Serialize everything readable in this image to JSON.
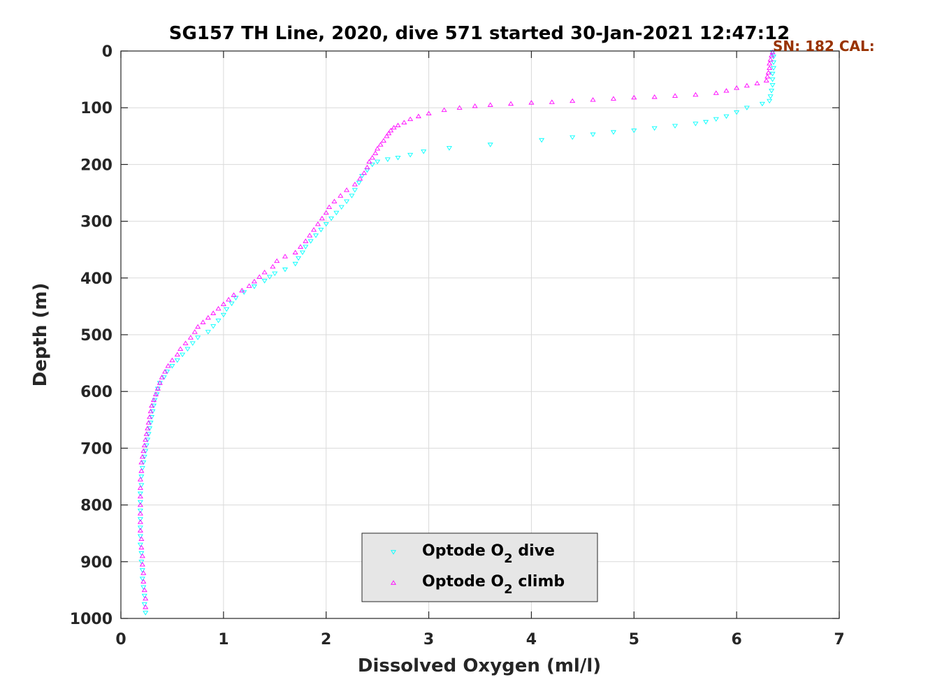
{
  "chart_data": {
    "type": "scatter",
    "title": "SG157 TH Line, 2020, dive 571 started 30-Jan-2021 12:47:12",
    "xlabel": "Dissolved Oxygen (ml/l)",
    "ylabel": "Depth (m)",
    "xlim": [
      0,
      7
    ],
    "ylim": [
      0,
      1000
    ],
    "y_reversed": true,
    "xticks": [
      0,
      1,
      2,
      3,
      4,
      5,
      6,
      7
    ],
    "yticks": [
      0,
      100,
      200,
      300,
      400,
      500,
      600,
      700,
      800,
      900,
      1000
    ],
    "grid": true,
    "legend_position": "bottom-center",
    "annotation": {
      "text": "SN: 182  CAL:",
      "color": "#993300",
      "position": "top-right"
    },
    "series": [
      {
        "name_prefix": "Optode O",
        "name_sub": "2",
        "name_suffix": " dive",
        "marker": "triangle-down",
        "color": "#00ffff",
        "points": [
          [
            6.35,
            2
          ],
          [
            6.36,
            10
          ],
          [
            6.36,
            20
          ],
          [
            6.36,
            30
          ],
          [
            6.35,
            40
          ],
          [
            6.35,
            50
          ],
          [
            6.35,
            60
          ],
          [
            6.34,
            70
          ],
          [
            6.33,
            80
          ],
          [
            6.32,
            88
          ],
          [
            6.25,
            93
          ],
          [
            6.1,
            100
          ],
          [
            6.0,
            108
          ],
          [
            5.9,
            115
          ],
          [
            5.8,
            120
          ],
          [
            5.7,
            125
          ],
          [
            5.6,
            128
          ],
          [
            5.4,
            132
          ],
          [
            5.2,
            136
          ],
          [
            5.0,
            140
          ],
          [
            4.8,
            143
          ],
          [
            4.6,
            147
          ],
          [
            4.4,
            152
          ],
          [
            4.1,
            157
          ],
          [
            3.6,
            165
          ],
          [
            3.2,
            171
          ],
          [
            2.95,
            177
          ],
          [
            2.82,
            183
          ],
          [
            2.7,
            188
          ],
          [
            2.6,
            191
          ],
          [
            2.5,
            195
          ],
          [
            2.45,
            200
          ],
          [
            2.4,
            210
          ],
          [
            2.35,
            220
          ],
          [
            2.32,
            232
          ],
          [
            2.28,
            245
          ],
          [
            2.25,
            255
          ],
          [
            2.2,
            265
          ],
          [
            2.15,
            275
          ],
          [
            2.1,
            285
          ],
          [
            2.05,
            295
          ],
          [
            2.0,
            305
          ],
          [
            1.95,
            315
          ],
          [
            1.9,
            325
          ],
          [
            1.85,
            335
          ],
          [
            1.8,
            345
          ],
          [
            1.77,
            355
          ],
          [
            1.73,
            365
          ],
          [
            1.7,
            375
          ],
          [
            1.6,
            385
          ],
          [
            1.5,
            392
          ],
          [
            1.45,
            398
          ],
          [
            1.4,
            405
          ],
          [
            1.3,
            415
          ],
          [
            1.2,
            425
          ],
          [
            1.12,
            435
          ],
          [
            1.08,
            445
          ],
          [
            1.03,
            455
          ],
          [
            1.0,
            465
          ],
          [
            0.95,
            475
          ],
          [
            0.9,
            485
          ],
          [
            0.85,
            495
          ],
          [
            0.75,
            505
          ],
          [
            0.7,
            515
          ],
          [
            0.65,
            525
          ],
          [
            0.6,
            535
          ],
          [
            0.55,
            545
          ],
          [
            0.5,
            555
          ],
          [
            0.45,
            565
          ],
          [
            0.42,
            575
          ],
          [
            0.38,
            585
          ],
          [
            0.36,
            595
          ],
          [
            0.35,
            605
          ],
          [
            0.33,
            615
          ],
          [
            0.32,
            625
          ],
          [
            0.31,
            635
          ],
          [
            0.3,
            645
          ],
          [
            0.29,
            655
          ],
          [
            0.28,
            665
          ],
          [
            0.27,
            675
          ],
          [
            0.26,
            685
          ],
          [
            0.25,
            695
          ],
          [
            0.24,
            705
          ],
          [
            0.23,
            715
          ],
          [
            0.22,
            725
          ],
          [
            0.21,
            735
          ],
          [
            0.2,
            750
          ],
          [
            0.2,
            765
          ],
          [
            0.19,
            780
          ],
          [
            0.19,
            795
          ],
          [
            0.19,
            810
          ],
          [
            0.19,
            825
          ],
          [
            0.19,
            840
          ],
          [
            0.19,
            855
          ],
          [
            0.19,
            870
          ],
          [
            0.2,
            885
          ],
          [
            0.2,
            900
          ],
          [
            0.21,
            915
          ],
          [
            0.21,
            930
          ],
          [
            0.22,
            945
          ],
          [
            0.23,
            960
          ],
          [
            0.23,
            975
          ],
          [
            0.24,
            990
          ]
        ]
      },
      {
        "name_prefix": "Optode O",
        "name_sub": "2",
        "name_suffix": " climb",
        "marker": "triangle-up",
        "color": "#ff00ff",
        "points": [
          [
            6.35,
            2
          ],
          [
            6.34,
            8
          ],
          [
            6.33,
            15
          ],
          [
            6.32,
            22
          ],
          [
            6.32,
            30
          ],
          [
            6.31,
            38
          ],
          [
            6.3,
            45
          ],
          [
            6.29,
            52
          ],
          [
            6.2,
            57
          ],
          [
            6.1,
            61
          ],
          [
            6.0,
            65
          ],
          [
            5.9,
            70
          ],
          [
            5.8,
            74
          ],
          [
            5.6,
            77
          ],
          [
            5.4,
            79
          ],
          [
            5.2,
            81
          ],
          [
            5.0,
            82
          ],
          [
            4.8,
            84
          ],
          [
            4.6,
            86
          ],
          [
            4.4,
            88
          ],
          [
            4.2,
            90
          ],
          [
            4.0,
            91
          ],
          [
            3.8,
            93
          ],
          [
            3.6,
            95
          ],
          [
            3.45,
            97
          ],
          [
            3.3,
            100
          ],
          [
            3.15,
            104
          ],
          [
            3.0,
            110
          ],
          [
            2.9,
            115
          ],
          [
            2.82,
            120
          ],
          [
            2.76,
            126
          ],
          [
            2.7,
            131
          ],
          [
            2.66,
            135
          ],
          [
            2.63,
            140
          ],
          [
            2.61,
            145
          ],
          [
            2.59,
            150
          ],
          [
            2.56,
            158
          ],
          [
            2.53,
            165
          ],
          [
            2.5,
            172
          ],
          [
            2.48,
            180
          ],
          [
            2.45,
            188
          ],
          [
            2.42,
            195
          ],
          [
            2.4,
            205
          ],
          [
            2.37,
            215
          ],
          [
            2.33,
            225
          ],
          [
            2.28,
            235
          ],
          [
            2.2,
            245
          ],
          [
            2.14,
            255
          ],
          [
            2.08,
            265
          ],
          [
            2.03,
            275
          ],
          [
            2.0,
            285
          ],
          [
            1.96,
            295
          ],
          [
            1.92,
            305
          ],
          [
            1.88,
            315
          ],
          [
            1.84,
            325
          ],
          [
            1.8,
            335
          ],
          [
            1.75,
            345
          ],
          [
            1.7,
            355
          ],
          [
            1.6,
            362
          ],
          [
            1.52,
            370
          ],
          [
            1.48,
            380
          ],
          [
            1.4,
            390
          ],
          [
            1.35,
            398
          ],
          [
            1.3,
            406
          ],
          [
            1.25,
            414
          ],
          [
            1.18,
            422
          ],
          [
            1.1,
            430
          ],
          [
            1.05,
            438
          ],
          [
            1.0,
            446
          ],
          [
            0.95,
            454
          ],
          [
            0.9,
            462
          ],
          [
            0.85,
            470
          ],
          [
            0.8,
            478
          ],
          [
            0.75,
            486
          ],
          [
            0.72,
            495
          ],
          [
            0.68,
            505
          ],
          [
            0.63,
            515
          ],
          [
            0.58,
            525
          ],
          [
            0.55,
            535
          ],
          [
            0.5,
            545
          ],
          [
            0.46,
            555
          ],
          [
            0.43,
            565
          ],
          [
            0.4,
            575
          ],
          [
            0.38,
            585
          ],
          [
            0.36,
            595
          ],
          [
            0.34,
            605
          ],
          [
            0.32,
            615
          ],
          [
            0.3,
            625
          ],
          [
            0.29,
            635
          ],
          [
            0.28,
            645
          ],
          [
            0.27,
            655
          ],
          [
            0.26,
            665
          ],
          [
            0.25,
            675
          ],
          [
            0.24,
            685
          ],
          [
            0.23,
            695
          ],
          [
            0.22,
            705
          ],
          [
            0.21,
            715
          ],
          [
            0.2,
            725
          ],
          [
            0.2,
            740
          ],
          [
            0.19,
            755
          ],
          [
            0.19,
            770
          ],
          [
            0.19,
            785
          ],
          [
            0.19,
            800
          ],
          [
            0.19,
            815
          ],
          [
            0.19,
            830
          ],
          [
            0.19,
            845
          ],
          [
            0.2,
            860
          ],
          [
            0.2,
            875
          ],
          [
            0.21,
            890
          ],
          [
            0.21,
            905
          ],
          [
            0.22,
            920
          ],
          [
            0.22,
            935
          ],
          [
            0.23,
            950
          ],
          [
            0.24,
            965
          ],
          [
            0.24,
            980
          ]
        ]
      }
    ]
  }
}
